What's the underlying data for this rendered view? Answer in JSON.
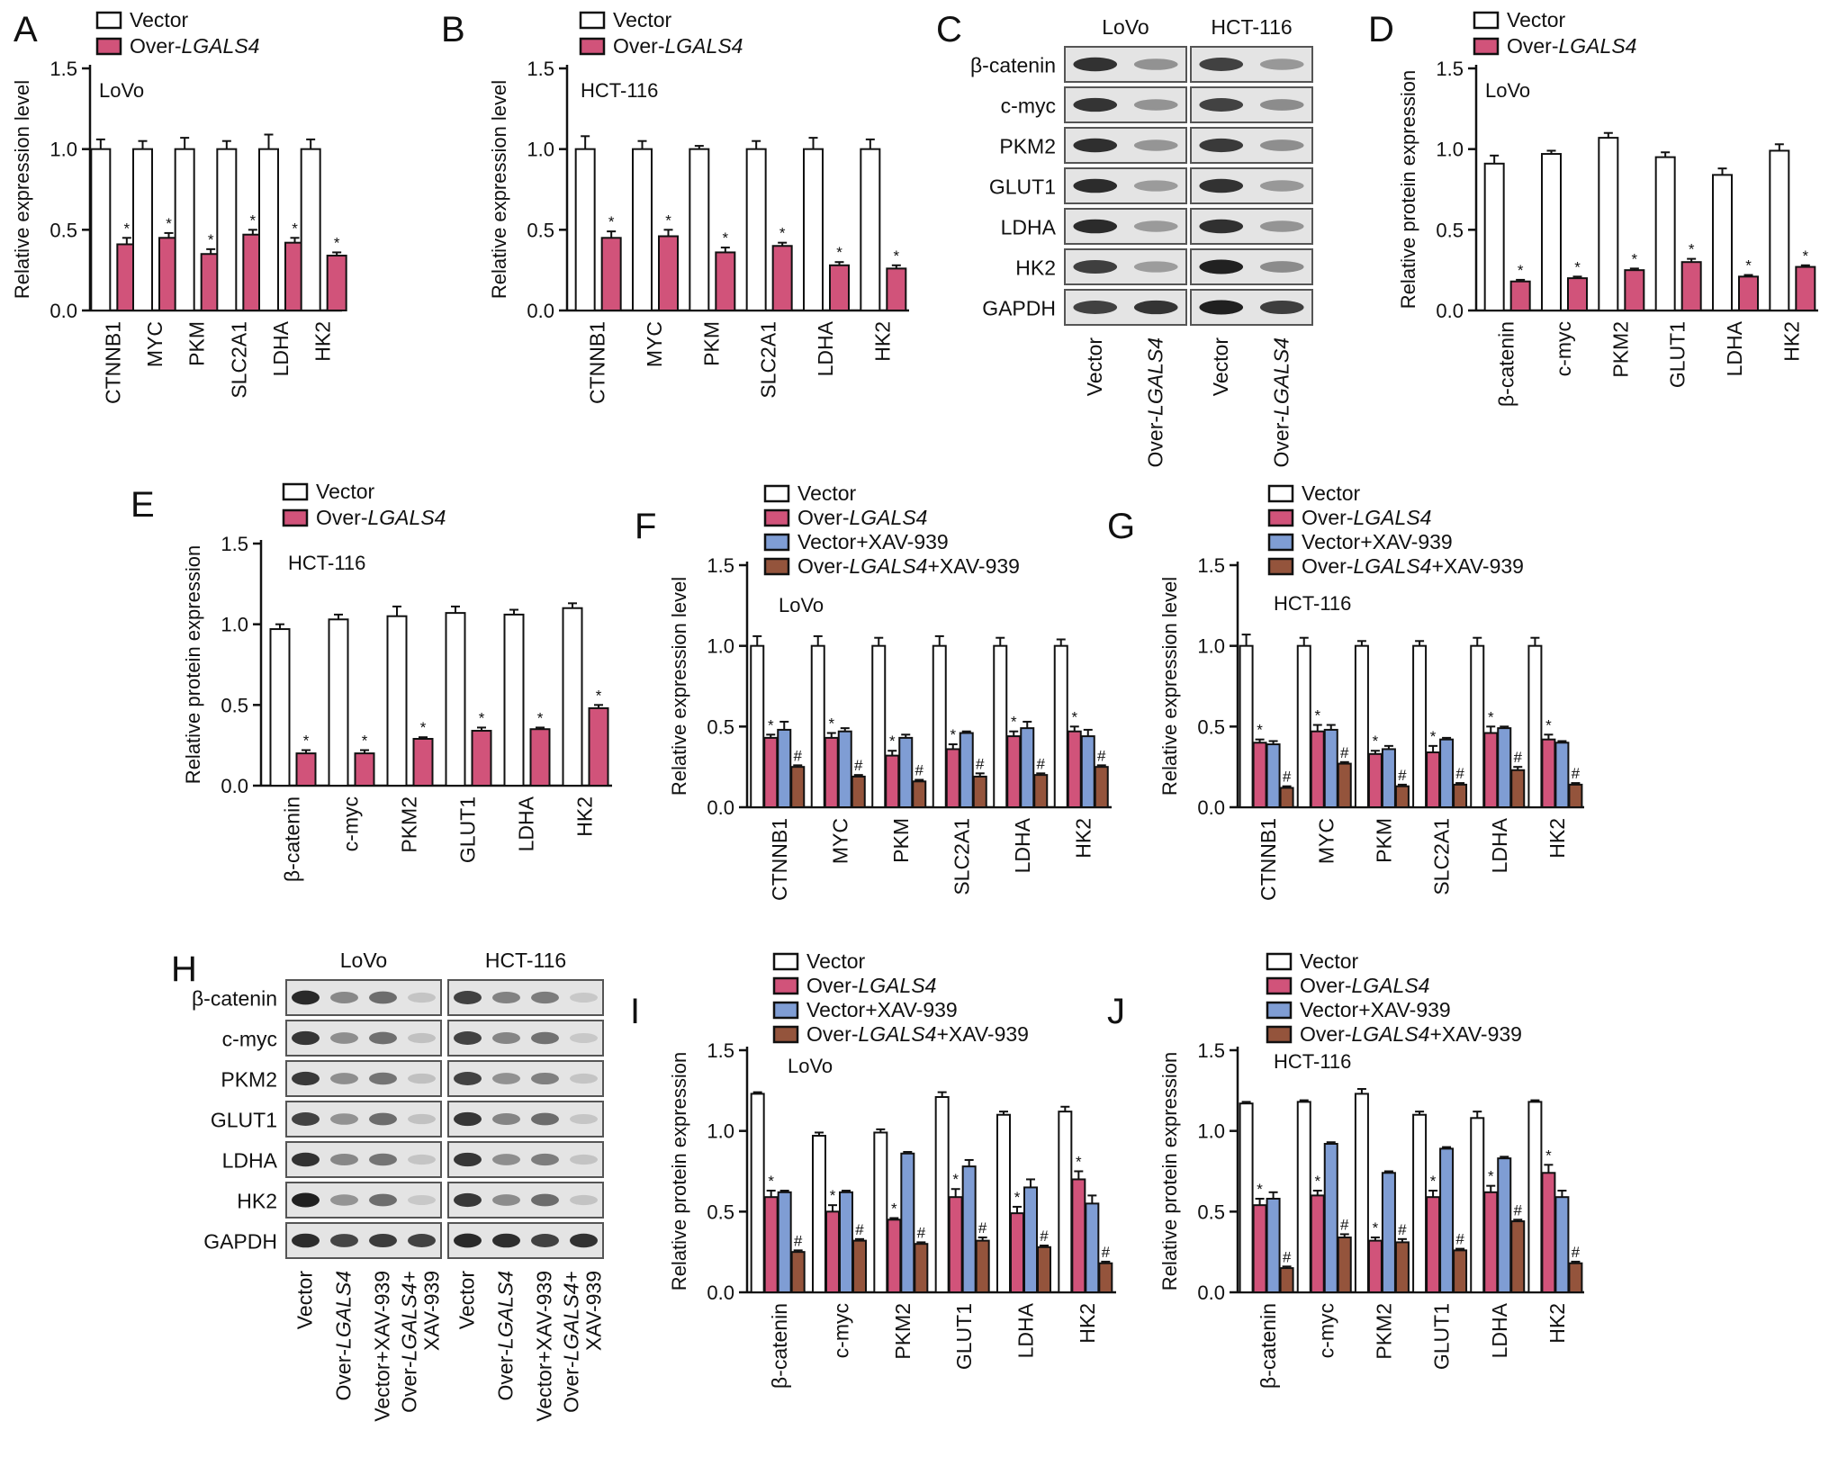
{
  "colors": {
    "vector": "#ffffff",
    "over": "#d1537a",
    "xav": "#7f9dd4",
    "overxav": "#94543c",
    "axis": "#111111"
  },
  "panels": [
    {
      "id": "A",
      "label": "A",
      "cell": "LoVo",
      "ylabel": "Relative expression level"
    },
    {
      "id": "B",
      "label": "B",
      "cell": "HCT-116",
      "ylabel": "Relative expression level"
    },
    {
      "id": "C",
      "label": "C"
    },
    {
      "id": "D",
      "label": "D",
      "cell": "LoVo",
      "ylabel": "Relative protein expression"
    },
    {
      "id": "E",
      "label": "E",
      "cell": "HCT-116",
      "ylabel": "Relative protein expression"
    },
    {
      "id": "F",
      "label": "F",
      "cell": "LoVo",
      "ylabel": "Relative expression level"
    },
    {
      "id": "G",
      "label": "G",
      "cell": "HCT-116",
      "ylabel": "Relative expression level"
    },
    {
      "id": "H",
      "label": "H"
    },
    {
      "id": "I",
      "label": "I",
      "cell": "LoVo",
      "ylabel": "Relative protein expression"
    },
    {
      "id": "J",
      "label": "J",
      "cell": "HCT-116",
      "ylabel": "Relative protein expression"
    }
  ],
  "legend2": [
    "Vector",
    "Over-",
    "LGALS4"
  ],
  "legend4": {
    "vector": "Vector",
    "over_prefix": "Over-",
    "gene": "LGALS4",
    "xav": "Vector+XAV-939",
    "overxav_suffix": "+XAV-939"
  },
  "y_ticks": [
    "0.0",
    "0.5",
    "1.0",
    "1.5"
  ],
  "sig_marks": {
    "star": "*",
    "hash": "#"
  },
  "blots": {
    "C": {
      "proteins": [
        "β-catenin",
        "c-myc",
        "PKM2",
        "GLUT1",
        "LDHA",
        "HK2",
        "GAPDH"
      ],
      "cell_lines": [
        "LoVo",
        "HCT-116"
      ],
      "lanes": [
        [
          "Vector"
        ],
        [
          "Over-",
          "LGALS4"
        ]
      ]
    },
    "H": {
      "proteins": [
        "β-catenin",
        "c-myc",
        "PKM2",
        "GLUT1",
        "LDHA",
        "HK2",
        "GAPDH"
      ],
      "cell_lines": [
        "LoVo",
        "HCT-116"
      ],
      "lanes": [
        [
          "Vector"
        ],
        [
          "Over-",
          "LGALS4"
        ],
        [
          "Vector+XAV-939"
        ],
        [
          "Over-",
          "LGALS4",
          "+"
        ],
        [
          "XAV-939"
        ]
      ]
    }
  },
  "chart_data": [
    {
      "panel": "A",
      "type": "bar",
      "title": "LoVo",
      "ylabel": "Relative expression level",
      "ylim": [
        0,
        1.5
      ],
      "categories": [
        "CTNNB1",
        "MYC",
        "PKM",
        "SLC2A1",
        "LDHA",
        "HK2"
      ],
      "series": [
        {
          "name": "Vector",
          "values": [
            1.0,
            1.0,
            1.0,
            1.0,
            1.0,
            1.0
          ],
          "errors": [
            0.06,
            0.05,
            0.07,
            0.05,
            0.09,
            0.06
          ]
        },
        {
          "name": "Over-LGALS4",
          "values": [
            0.41,
            0.45,
            0.35,
            0.47,
            0.42,
            0.34
          ],
          "errors": [
            0.04,
            0.03,
            0.03,
            0.03,
            0.03,
            0.02
          ],
          "marks": [
            "*",
            "*",
            "*",
            "*",
            "*",
            "*"
          ]
        }
      ]
    },
    {
      "panel": "B",
      "type": "bar",
      "title": "HCT-116",
      "ylabel": "Relative expression level",
      "ylim": [
        0,
        1.5
      ],
      "categories": [
        "CTNNB1",
        "MYC",
        "PKM",
        "SLC2A1",
        "LDHA",
        "HK2"
      ],
      "series": [
        {
          "name": "Vector",
          "values": [
            1.0,
            1.0,
            1.0,
            1.0,
            1.0,
            1.0
          ],
          "errors": [
            0.08,
            0.05,
            0.02,
            0.05,
            0.07,
            0.06
          ]
        },
        {
          "name": "Over-LGALS4",
          "values": [
            0.45,
            0.46,
            0.36,
            0.4,
            0.28,
            0.26
          ],
          "errors": [
            0.04,
            0.04,
            0.03,
            0.02,
            0.02,
            0.02
          ],
          "marks": [
            "*",
            "*",
            "*",
            "*",
            "*",
            "*"
          ]
        }
      ]
    },
    {
      "panel": "D",
      "type": "bar",
      "title": "LoVo",
      "ylabel": "Relative protein expression",
      "ylim": [
        0,
        1.5
      ],
      "categories": [
        "β-catenin",
        "c-myc",
        "PKM2",
        "GLUT1",
        "LDHA",
        "HK2"
      ],
      "series": [
        {
          "name": "Vector",
          "values": [
            0.91,
            0.97,
            1.07,
            0.95,
            0.84,
            0.99
          ],
          "errors": [
            0.05,
            0.02,
            0.03,
            0.03,
            0.04,
            0.04
          ]
        },
        {
          "name": "Over-LGALS4",
          "values": [
            0.18,
            0.2,
            0.25,
            0.3,
            0.21,
            0.27
          ],
          "errors": [
            0.01,
            0.01,
            0.01,
            0.02,
            0.01,
            0.01
          ],
          "marks": [
            "*",
            "*",
            "*",
            "*",
            "*",
            "*"
          ]
        }
      ]
    },
    {
      "panel": "E",
      "type": "bar",
      "title": "HCT-116",
      "ylabel": "Relative protein expression",
      "ylim": [
        0,
        1.5
      ],
      "categories": [
        "β-catenin",
        "c-myc",
        "PKM2",
        "GLUT1",
        "LDHA",
        "HK2"
      ],
      "series": [
        {
          "name": "Vector",
          "values": [
            0.97,
            1.03,
            1.05,
            1.07,
            1.06,
            1.1
          ],
          "errors": [
            0.03,
            0.03,
            0.06,
            0.04,
            0.03,
            0.03
          ]
        },
        {
          "name": "Over-LGALS4",
          "values": [
            0.2,
            0.2,
            0.29,
            0.34,
            0.35,
            0.48
          ],
          "errors": [
            0.02,
            0.02,
            0.01,
            0.02,
            0.01,
            0.02
          ],
          "marks": [
            "*",
            "*",
            "*",
            "*",
            "*",
            "*"
          ]
        }
      ]
    },
    {
      "panel": "F",
      "type": "bar",
      "title": "LoVo",
      "ylabel": "Relative expression level",
      "ylim": [
        0,
        1.5
      ],
      "categories": [
        "CTNNB1",
        "MYC",
        "PKM",
        "SLC2A1",
        "LDHA",
        "HK2"
      ],
      "series": [
        {
          "name": "Vector",
          "values": [
            1.0,
            1.0,
            1.0,
            1.0,
            1.0,
            1.0
          ],
          "errors": [
            0.06,
            0.06,
            0.05,
            0.06,
            0.05,
            0.04
          ]
        },
        {
          "name": "Over-LGALS4",
          "values": [
            0.43,
            0.43,
            0.32,
            0.36,
            0.44,
            0.47
          ],
          "errors": [
            0.02,
            0.03,
            0.03,
            0.03,
            0.03,
            0.03
          ],
          "marks": [
            "*",
            "*",
            "*",
            "*",
            "*",
            "*"
          ]
        },
        {
          "name": "Vector+XAV-939",
          "values": [
            0.48,
            0.47,
            0.43,
            0.46,
            0.49,
            0.44
          ],
          "errors": [
            0.05,
            0.02,
            0.02,
            0.01,
            0.04,
            0.04
          ]
        },
        {
          "name": "Over-LGALS4+XAV-939",
          "values": [
            0.25,
            0.19,
            0.16,
            0.19,
            0.2,
            0.25
          ],
          "errors": [
            0.01,
            0.01,
            0.01,
            0.02,
            0.01,
            0.01
          ],
          "marks": [
            "#",
            "#",
            "#",
            "#",
            "#",
            "#"
          ]
        }
      ]
    },
    {
      "panel": "G",
      "type": "bar",
      "title": "HCT-116",
      "ylabel": "Relative expression level",
      "ylim": [
        0,
        1.5
      ],
      "categories": [
        "CTNNB1",
        "MYC",
        "PKM",
        "SLC2A1",
        "LDHA",
        "HK2"
      ],
      "series": [
        {
          "name": "Vector",
          "values": [
            1.0,
            1.0,
            1.0,
            1.0,
            1.0,
            1.0
          ],
          "errors": [
            0.07,
            0.05,
            0.03,
            0.03,
            0.05,
            0.05
          ]
        },
        {
          "name": "Over-LGALS4",
          "values": [
            0.4,
            0.47,
            0.33,
            0.34,
            0.46,
            0.42
          ],
          "errors": [
            0.02,
            0.04,
            0.02,
            0.04,
            0.04,
            0.03
          ],
          "marks": [
            "*",
            "*",
            "*",
            "*",
            "*",
            "*"
          ]
        },
        {
          "name": "Vector+XAV-939",
          "values": [
            0.39,
            0.48,
            0.36,
            0.42,
            0.49,
            0.4
          ],
          "errors": [
            0.02,
            0.03,
            0.02,
            0.01,
            0.01,
            0.01
          ]
        },
        {
          "name": "Over-LGALS4+XAV-939",
          "values": [
            0.12,
            0.27,
            0.13,
            0.14,
            0.23,
            0.14
          ],
          "errors": [
            0.01,
            0.01,
            0.01,
            0.01,
            0.02,
            0.01
          ],
          "marks": [
            "#",
            "#",
            "#",
            "#",
            "#",
            "#"
          ]
        }
      ]
    },
    {
      "panel": "I",
      "type": "bar",
      "title": "LoVo",
      "ylabel": "Relative protein expression",
      "ylim": [
        0,
        1.5
      ],
      "categories": [
        "β-catenin",
        "c-myc",
        "PKM2",
        "GLUT1",
        "LDHA",
        "HK2"
      ],
      "series": [
        {
          "name": "Vector",
          "values": [
            1.23,
            0.97,
            0.99,
            1.21,
            1.1,
            1.12
          ],
          "errors": [
            0.01,
            0.02,
            0.02,
            0.03,
            0.02,
            0.03
          ]
        },
        {
          "name": "Over-LGALS4",
          "values": [
            0.59,
            0.5,
            0.45,
            0.59,
            0.49,
            0.7
          ],
          "errors": [
            0.04,
            0.04,
            0.01,
            0.05,
            0.04,
            0.05
          ],
          "marks": [
            "*",
            "*",
            "*",
            "*",
            "*",
            "*"
          ]
        },
        {
          "name": "Vector+XAV-939",
          "values": [
            0.62,
            0.62,
            0.86,
            0.78,
            0.65,
            0.55
          ],
          "errors": [
            0.01,
            0.01,
            0.01,
            0.04,
            0.05,
            0.05
          ]
        },
        {
          "name": "Over-LGALS4+XAV-939",
          "values": [
            0.25,
            0.32,
            0.3,
            0.32,
            0.28,
            0.18
          ],
          "errors": [
            0.01,
            0.01,
            0.01,
            0.02,
            0.01,
            0.01
          ],
          "marks": [
            "#",
            "#",
            "#",
            "#",
            "#",
            "#"
          ]
        }
      ]
    },
    {
      "panel": "J",
      "type": "bar",
      "title": "HCT-116",
      "ylabel": "Relative protein expression",
      "ylim": [
        0,
        1.5
      ],
      "categories": [
        "β-catenin",
        "c-myc",
        "PKM2",
        "GLUT1",
        "LDHA",
        "HK2"
      ],
      "series": [
        {
          "name": "Vector",
          "values": [
            1.17,
            1.18,
            1.23,
            1.1,
            1.08,
            1.18
          ],
          "errors": [
            0.01,
            0.01,
            0.03,
            0.02,
            0.04,
            0.01
          ]
        },
        {
          "name": "Over-LGALS4",
          "values": [
            0.54,
            0.6,
            0.32,
            0.59,
            0.62,
            0.74
          ],
          "errors": [
            0.04,
            0.03,
            0.02,
            0.04,
            0.04,
            0.05
          ],
          "marks": [
            "*",
            "*",
            "*",
            "*",
            "*",
            "*"
          ]
        },
        {
          "name": "Vector+XAV-939",
          "values": [
            0.58,
            0.92,
            0.74,
            0.89,
            0.83,
            0.59
          ],
          "errors": [
            0.04,
            0.01,
            0.01,
            0.01,
            0.01,
            0.04
          ]
        },
        {
          "name": "Over-LGALS4+XAV-939",
          "values": [
            0.15,
            0.34,
            0.31,
            0.26,
            0.44,
            0.18
          ],
          "errors": [
            0.01,
            0.02,
            0.02,
            0.01,
            0.01,
            0.01
          ],
          "marks": [
            "#",
            "#",
            "#",
            "#",
            "#",
            "#"
          ]
        }
      ]
    }
  ]
}
